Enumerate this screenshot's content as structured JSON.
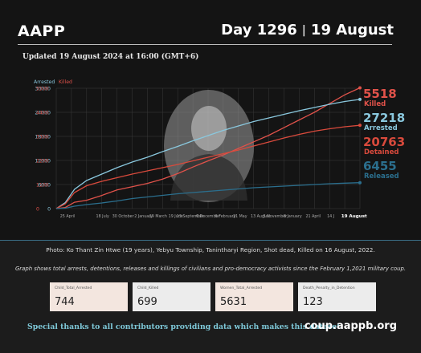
{
  "header": {
    "brand": "AAPP",
    "day": "Day 1296",
    "separator": "|",
    "date": "19 August",
    "updated": "Updated 19 August 2024 at 16:00 (GMT+6)"
  },
  "colors": {
    "killed": "#e0524a",
    "arrested": "#8ac8de",
    "detained": "#d94a3c",
    "released": "#2b6f8e",
    "grid": "#3a3a3a",
    "photo_bg": "#9a9a9a"
  },
  "icons": {
    "photo": "portrait-photo"
  },
  "chart_data": {
    "type": "line",
    "axis_titles": {
      "left": "Arrested",
      "right": "Killed"
    },
    "y_left_ticks": [
      "0",
      "6000",
      "12000",
      "18000",
      "24000",
      "30000"
    ],
    "y_right_ticks": [
      "0",
      "1100",
      "2200",
      "3300",
      "4400",
      "5500"
    ],
    "ylim_left": [
      0,
      30000
    ],
    "ylim_right": [
      0,
      5500
    ],
    "x_ticks": [
      "25 April",
      "18 July",
      "30 October",
      "2 January",
      "29 March",
      "19 June",
      "13 September",
      "6 December",
      "6 February",
      "21 May",
      "13 August",
      "5 November",
      "8 January",
      "21 April",
      "14 J",
      "19 August"
    ],
    "x_positions_pct": [
      0,
      12,
      19,
      26,
      31,
      37,
      42,
      48,
      54,
      59,
      66,
      71,
      77,
      84,
      90,
      98
    ],
    "series": [
      {
        "name": "Killed",
        "axis": "right",
        "label_value": "5518",
        "label_name": "Killed",
        "points": [
          [
            0,
            0
          ],
          [
            3,
            50
          ],
          [
            6,
            290
          ],
          [
            10,
            380
          ],
          [
            15,
            600
          ],
          [
            20,
            850
          ],
          [
            25,
            1000
          ],
          [
            30,
            1150
          ],
          [
            35,
            1350
          ],
          [
            40,
            1600
          ],
          [
            45,
            1900
          ],
          [
            50,
            2180
          ],
          [
            55,
            2450
          ],
          [
            60,
            2750
          ],
          [
            65,
            3050
          ],
          [
            70,
            3350
          ],
          [
            75,
            3700
          ],
          [
            80,
            4050
          ],
          [
            85,
            4400
          ],
          [
            90,
            4800
          ],
          [
            95,
            5200
          ],
          [
            100,
            5518
          ]
        ]
      },
      {
        "name": "Arrested",
        "axis": "left",
        "label_value": "27218",
        "label_name": "Arrested",
        "points": [
          [
            0,
            0
          ],
          [
            3,
            1500
          ],
          [
            6,
            4800
          ],
          [
            10,
            7000
          ],
          [
            15,
            8600
          ],
          [
            20,
            10200
          ],
          [
            25,
            11600
          ],
          [
            30,
            12800
          ],
          [
            35,
            14200
          ],
          [
            40,
            15500
          ],
          [
            45,
            16900
          ],
          [
            50,
            18200
          ],
          [
            55,
            19500
          ],
          [
            60,
            20600
          ],
          [
            65,
            21700
          ],
          [
            70,
            22600
          ],
          [
            75,
            23500
          ],
          [
            80,
            24400
          ],
          [
            85,
            25200
          ],
          [
            90,
            26000
          ],
          [
            95,
            26700
          ],
          [
            100,
            27218
          ]
        ]
      },
      {
        "name": "Detained",
        "axis": "left",
        "label_value": "20763",
        "label_name": "Detained",
        "points": [
          [
            0,
            0
          ],
          [
            3,
            1200
          ],
          [
            6,
            4000
          ],
          [
            10,
            5700
          ],
          [
            15,
            6800
          ],
          [
            20,
            7700
          ],
          [
            25,
            8600
          ],
          [
            30,
            9400
          ],
          [
            35,
            10200
          ],
          [
            40,
            11000
          ],
          [
            45,
            11900
          ],
          [
            50,
            12800
          ],
          [
            55,
            13700
          ],
          [
            60,
            14600
          ],
          [
            65,
            15600
          ],
          [
            70,
            16600
          ],
          [
            75,
            17600
          ],
          [
            80,
            18500
          ],
          [
            85,
            19300
          ],
          [
            90,
            19900
          ],
          [
            95,
            20400
          ],
          [
            100,
            20763
          ]
        ]
      },
      {
        "name": "Released",
        "axis": "left",
        "label_value": "6455",
        "label_name": "Released",
        "points": [
          [
            0,
            0
          ],
          [
            3,
            100
          ],
          [
            6,
            600
          ],
          [
            10,
            1000
          ],
          [
            15,
            1400
          ],
          [
            20,
            1900
          ],
          [
            25,
            2500
          ],
          [
            30,
            2900
          ],
          [
            35,
            3300
          ],
          [
            40,
            3700
          ],
          [
            45,
            4000
          ],
          [
            50,
            4300
          ],
          [
            55,
            4600
          ],
          [
            60,
            4900
          ],
          [
            65,
            5200
          ],
          [
            70,
            5400
          ],
          [
            75,
            5600
          ],
          [
            80,
            5800
          ],
          [
            85,
            6000
          ],
          [
            90,
            6200
          ],
          [
            95,
            6350
          ],
          [
            100,
            6455
          ]
        ]
      }
    ]
  },
  "captions": {
    "photo": "Photo: Ko Thant Zin Htwe (19 years), Yebyu Township, Tanintharyi Region, Shot dead, Killed on 16 August, 2022.",
    "graph": "Graph shows total arrests, detentions, releases and killings of civilians and pro-democracy activists since the February 1,2021 military coup."
  },
  "cards": [
    {
      "label": "Child_Total_Arrested",
      "value": "744"
    },
    {
      "label": "Child_Killed",
      "value": "699"
    },
    {
      "label": "Women_Total_Arrested",
      "value": "5631"
    },
    {
      "label": "Death_Penalty_in_Detention",
      "value": "123"
    }
  ],
  "footer": {
    "thanks": "Special thanks to all contributors providing data which makes this dataset.",
    "site": "coup.aappb.org"
  }
}
